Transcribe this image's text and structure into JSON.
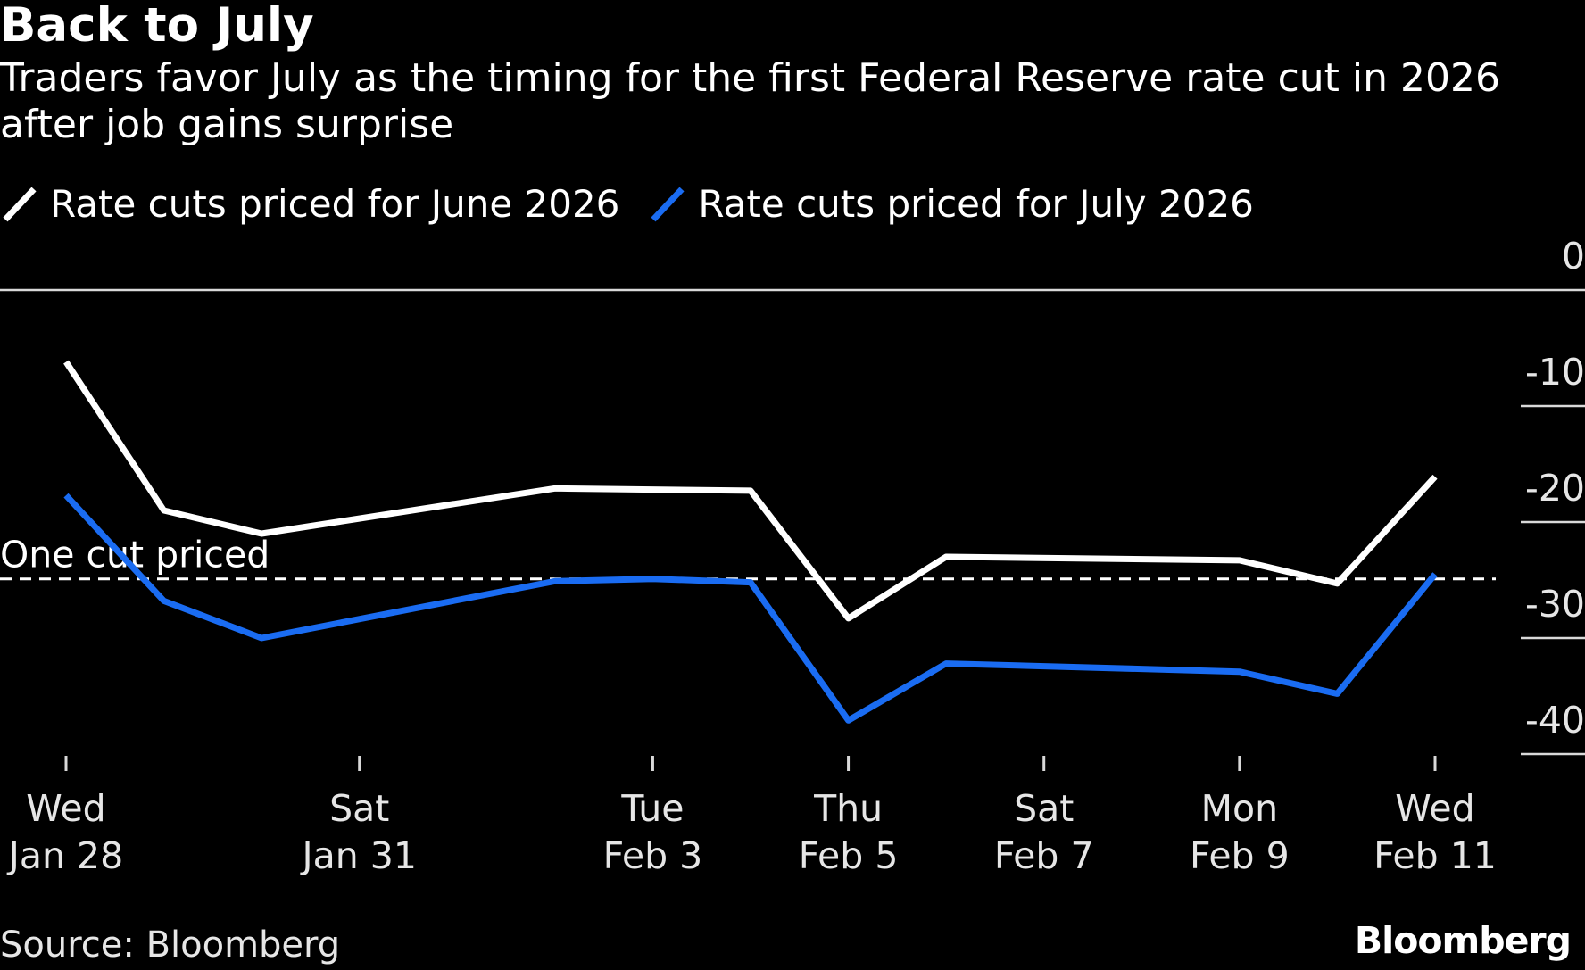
{
  "header": {
    "title": "Back to July",
    "subtitle": "Traders favor July as the timing for the first Federal Reserve rate cut in 2026 after job gains surprise"
  },
  "legend": {
    "items": [
      {
        "label": "Rate cuts priced for June 2026",
        "color": "#ffffff",
        "icon": "line-swatch-icon"
      },
      {
        "label": "Rate cuts priced for July 2026",
        "color": "#1a6cf2",
        "icon": "line-swatch-icon"
      }
    ]
  },
  "footer": {
    "source": "Source: Bloomberg",
    "brand": "Bloomberg"
  },
  "chart_data": {
    "type": "line",
    "title": "Back to July",
    "xlabel": "",
    "ylabel": "",
    "ylim": [
      -41,
      0
    ],
    "xlim": [
      0,
      14
    ],
    "grid": true,
    "legend_position": "top-left",
    "y_ticks": [
      {
        "value": 0,
        "label": "0"
      },
      {
        "value": -10,
        "label": "-10"
      },
      {
        "value": -20,
        "label": "-20"
      },
      {
        "value": -30,
        "label": "-30"
      },
      {
        "value": -40,
        "label": "-40"
      }
    ],
    "x_ticks": [
      {
        "day": 0,
        "weekday": "Wed",
        "date": "Jan 28"
      },
      {
        "day": 3,
        "weekday": "Sat",
        "date": "Jan 31"
      },
      {
        "day": 6,
        "weekday": "Tue",
        "date": "Feb 3"
      },
      {
        "day": 8,
        "weekday": "Thu",
        "date": "Feb 5"
      },
      {
        "day": 10,
        "weekday": "Sat",
        "date": "Feb 7"
      },
      {
        "day": 12,
        "weekday": "Mon",
        "date": "Feb 9"
      },
      {
        "day": 14,
        "weekday": "Wed",
        "date": "Feb 11"
      }
    ],
    "series": [
      {
        "name": "Rate cuts priced for June 2026",
        "color": "#ffffff",
        "x": [
          0,
          1,
          2,
          5,
          7,
          8,
          9,
          12,
          13,
          14
        ],
        "y": [
          -6.2,
          -19.0,
          -21.0,
          -17.1,
          -17.3,
          -28.3,
          -23.0,
          -23.3,
          -25.3,
          -16.1
        ]
      },
      {
        "name": "Rate cuts priced for July 2026",
        "color": "#1a6cf2",
        "x": [
          0,
          1,
          2,
          5,
          6,
          7,
          8,
          9,
          12,
          13,
          14
        ],
        "y": [
          -17.7,
          -26.8,
          -30.0,
          -25.1,
          -24.9,
          -25.2,
          -37.1,
          -32.2,
          -32.9,
          -34.8,
          -24.5
        ]
      }
    ],
    "reference_line": {
      "value": -24.9,
      "label": "One cut priced"
    }
  }
}
